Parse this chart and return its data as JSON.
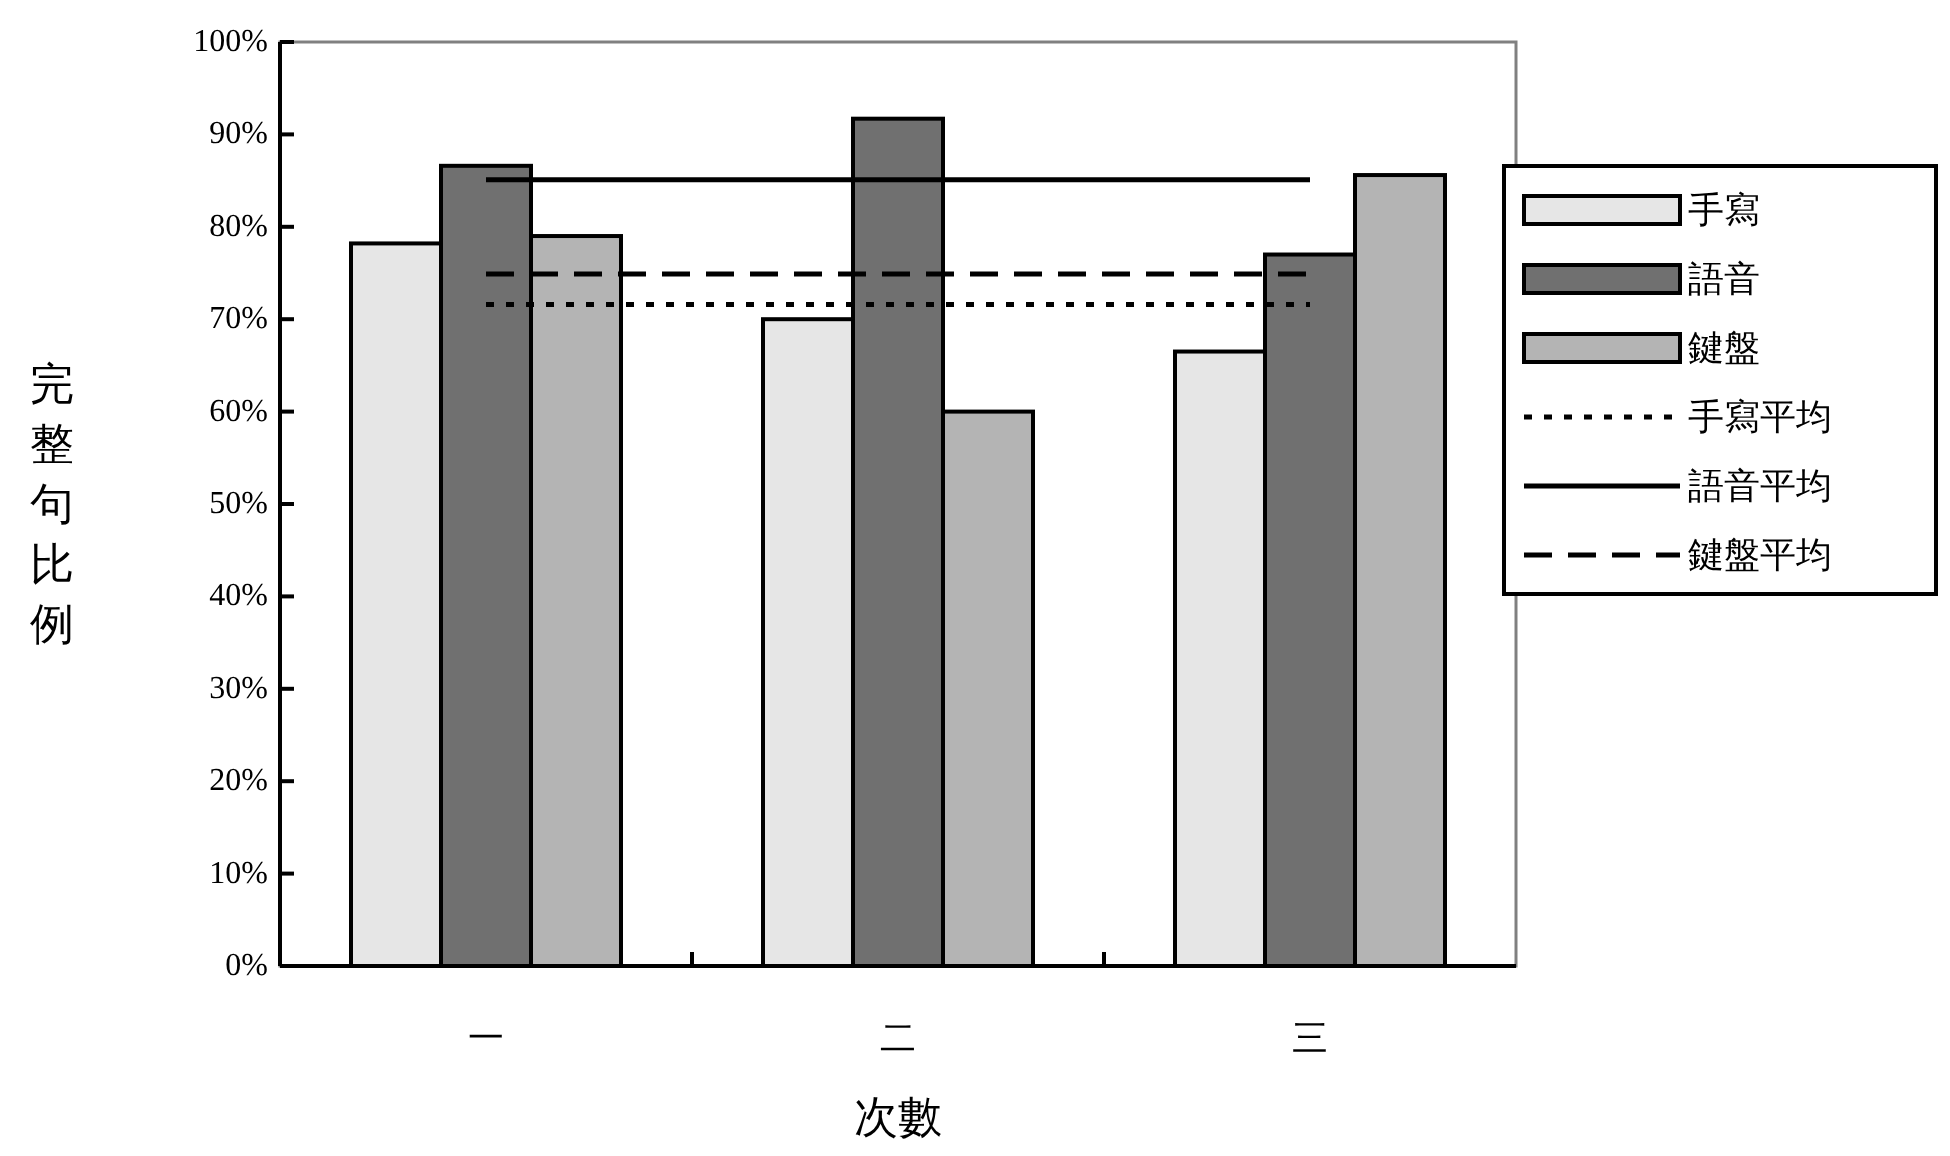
{
  "chart_data": {
    "type": "bar",
    "xlabel": "次數",
    "ylabel": "完整句比例",
    "categories": [
      "一",
      "二",
      "三"
    ],
    "ylim": [
      0,
      100
    ],
    "yticks": [
      {
        "value": 0,
        "label": "0%"
      },
      {
        "value": 10,
        "label": "10%"
      },
      {
        "value": 20,
        "label": "20%"
      },
      {
        "value": 30,
        "label": "30%"
      },
      {
        "value": 40,
        "label": "40%"
      },
      {
        "value": 50,
        "label": "50%"
      },
      {
        "value": 60,
        "label": "60%"
      },
      {
        "value": 70,
        "label": "70%"
      },
      {
        "value": 80,
        "label": "80%"
      },
      {
        "value": 90,
        "label": "90%"
      },
      {
        "value": 100,
        "label": "100%"
      }
    ],
    "grid": false,
    "legend": "right",
    "series": [
      {
        "name": "手寫",
        "color": "#e6e6e6",
        "values": [
          78.2,
          70,
          66.5
        ]
      },
      {
        "name": "語音",
        "color": "#707070",
        "values": [
          86.6,
          91.7,
          77
        ]
      },
      {
        "name": "鍵盤",
        "color": "#b4b4b4",
        "values": [
          79,
          60,
          85.6
        ]
      },
      {
        "name": "手寫平均",
        "type": "line",
        "color": "#000000",
        "line_style": "dotted",
        "values": [
          71.6,
          71.6,
          71.6
        ]
      },
      {
        "name": "語音平均",
        "type": "line",
        "color": "#000000",
        "line_style": "solid",
        "values": [
          85.1,
          85.1,
          85.1
        ]
      },
      {
        "name": "鍵盤平均",
        "type": "line",
        "color": "#000000",
        "line_style": "dashed",
        "values": [
          74.9,
          74.9,
          74.9
        ]
      }
    ]
  }
}
